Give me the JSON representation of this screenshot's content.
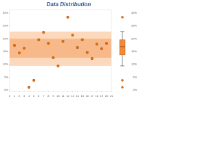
{
  "chart_data": {
    "type": "scatter",
    "title": "Data Distribution",
    "x": [
      1,
      2,
      3,
      4,
      5,
      6,
      7,
      8,
      9,
      10,
      11,
      12,
      13,
      14,
      15,
      16,
      17,
      18,
      19,
      20
    ],
    "series": [
      {
        "color": "#e8700a",
        "values": [
          17.4,
          14.5,
          16.3,
          1.1,
          3.8,
          19.6,
          22.5,
          18.2,
          12.6,
          9.4,
          19.0,
          28.4,
          21.4,
          16.6,
          19.6,
          14.7,
          12.3,
          17.9,
          16.1,
          18.2
        ]
      }
    ],
    "xlim": [
      0,
      21
    ],
    "xticks": [
      0,
      1,
      2,
      3,
      4,
      5,
      6,
      7,
      8,
      9,
      10,
      11,
      12,
      13,
      14,
      15,
      16,
      17,
      18,
      19,
      20,
      21
    ],
    "ylim": [
      0,
      30
    ],
    "yticks": [
      {
        "value": 0,
        "label": "0%"
      },
      {
        "value": 5,
        "label": "5%"
      },
      {
        "value": 10,
        "label": "10%"
      },
      {
        "value": 15,
        "label": "15%"
      },
      {
        "value": 20,
        "label": "20%"
      },
      {
        "value": 25,
        "label": "25%"
      },
      {
        "value": 30,
        "label": "30%"
      }
    ],
    "bands": [
      {
        "from": 9.4,
        "to": 22.8,
        "color": "#fcd9bd"
      },
      {
        "from": 12.6,
        "to": 20,
        "color": "#f8b98a"
      }
    ],
    "box": {
      "whisker_low": 9.4,
      "q1": 13.7,
      "median": 16.9,
      "q3": 19.6,
      "whisker_high": 22.8,
      "outliers": [
        28.4,
        3.8,
        1.1
      ],
      "color": "#f08a3c"
    }
  }
}
